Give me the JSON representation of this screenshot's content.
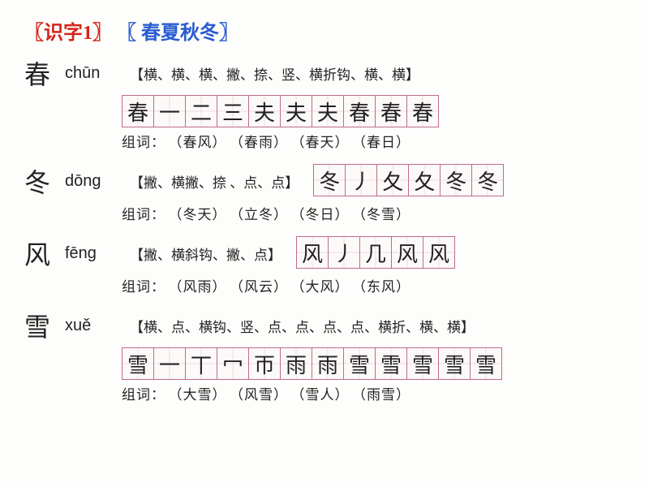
{
  "header": {
    "bracket_l": "〖",
    "bracket_r": "〗",
    "label1": "识字1",
    "label2": " 春夏秋冬"
  },
  "entries": [
    {
      "char": "春",
      "pinyin": "chūn",
      "strokes": "【横、横、横、撇、捺、竖、横折钩、横、横】",
      "grid": [
        "春",
        "一",
        "二",
        "三",
        "夫",
        "夫",
        "夫",
        "春",
        "春",
        "春"
      ],
      "gridInline": false,
      "zuci_label": "组词：",
      "zuci": [
        "（春风）",
        "（春雨）",
        "（春天）",
        "（春日）"
      ]
    },
    {
      "char": "冬",
      "pinyin": "dōng",
      "strokes": "【撇、横撇、捺 、点、点】",
      "grid": [
        "冬",
        "丿",
        "夂",
        "夂",
        "冬",
        "冬"
      ],
      "gridInline": true,
      "zuci_label": "组词：",
      "zuci": [
        "（冬天）",
        "（立冬）",
        "（冬日）",
        "（冬雪）"
      ]
    },
    {
      "char": "风",
      "pinyin": "fēng",
      "strokes": "【撇、横斜钩、撇、点】",
      "grid": [
        "风",
        "丿",
        "几",
        "风",
        "风"
      ],
      "gridInline": true,
      "zuci_label": "组词：",
      "zuci": [
        "（风雨）",
        "（风云）",
        "（大风）",
        "（东风）"
      ]
    },
    {
      "char": "雪",
      "pinyin": "xuě",
      "strokes": "【横、点、横钩、竖、点、点、点、点、横折、横、横】",
      "grid": [
        "雪",
        "一",
        "丅",
        "冖",
        "帀",
        "雨",
        "雨",
        "雪",
        "雪",
        "雪",
        "雪",
        "雪"
      ],
      "gridInline": false,
      "zuci_label": "组词：",
      "zuci": [
        "（大雪）",
        "（风雪）",
        "（雪人）",
        "（雨雪）"
      ]
    }
  ]
}
